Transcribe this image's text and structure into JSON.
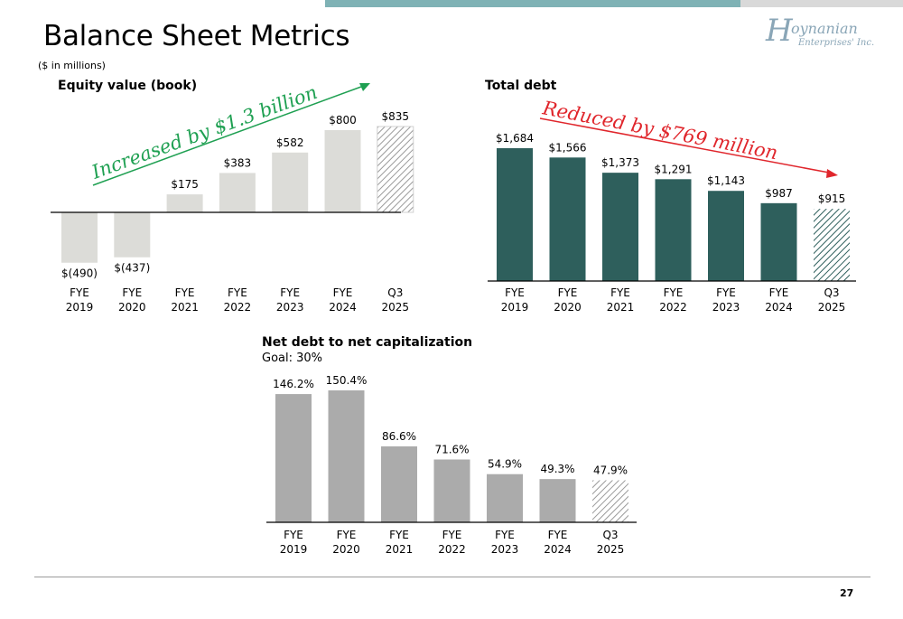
{
  "page": {
    "title": "Balance Sheet Metrics",
    "units_note": "($ in millions)",
    "page_number": "27",
    "band_color": "#7fb2b5"
  },
  "logo": {
    "initial": "H",
    "line1": "oynanian",
    "line2": "Enterprises' Inc."
  },
  "icons": {
    "trend_arrow": "arrow-right-icon",
    "hatch": "diagonal-hatch-pattern"
  },
  "chart_data": [
    {
      "id": "equity",
      "type": "bar",
      "title": "Equity value (book)",
      "categories": [
        [
          "FYE",
          "2019"
        ],
        [
          "FYE",
          "2020"
        ],
        [
          "FYE",
          "2021"
        ],
        [
          "FYE",
          "2022"
        ],
        [
          "FYE",
          "2023"
        ],
        [
          "FYE",
          "2024"
        ],
        [
          "Q3",
          "2025"
        ]
      ],
      "values": [
        -490,
        -437,
        175,
        383,
        582,
        800,
        835
      ],
      "value_labels": [
        "$(490)",
        "$(437)",
        "$175",
        "$383",
        "$582",
        "$800",
        "$835"
      ],
      "hatched_last": true,
      "color": "#dcdcd8",
      "annotation": {
        "text": "Increased by $1.3 billion",
        "color": "#1fa052"
      },
      "ylim": [
        -490,
        835
      ]
    },
    {
      "id": "debt",
      "type": "bar",
      "title": "Total debt",
      "categories": [
        [
          "FYE",
          "2019"
        ],
        [
          "FYE",
          "2020"
        ],
        [
          "FYE",
          "2021"
        ],
        [
          "FYE",
          "2022"
        ],
        [
          "FYE",
          "2023"
        ],
        [
          "FYE",
          "2024"
        ],
        [
          "Q3",
          "2025"
        ]
      ],
      "values": [
        1684,
        1566,
        1373,
        1291,
        1143,
        987,
        915
      ],
      "value_labels": [
        "$1,684",
        "$1,566",
        "$1,373",
        "$1,291",
        "$1,143",
        "$987",
        "$915"
      ],
      "hatched_last": true,
      "color": "#2e5f5c",
      "annotation": {
        "text": "Reduced by $769 million",
        "color": "#e0262c"
      },
      "ylim": [
        0,
        1684
      ]
    },
    {
      "id": "netdebt",
      "type": "bar",
      "title": "Net debt to net capitalization",
      "subtitle": "Goal: 30%",
      "categories": [
        [
          "FYE",
          "2019"
        ],
        [
          "FYE",
          "2020"
        ],
        [
          "FYE",
          "2021"
        ],
        [
          "FYE",
          "2022"
        ],
        [
          "FYE",
          "2023"
        ],
        [
          "FYE",
          "2024"
        ],
        [
          "Q3",
          "2025"
        ]
      ],
      "values": [
        146.2,
        150.4,
        86.6,
        71.6,
        54.9,
        49.3,
        47.9
      ],
      "value_labels": [
        "146.2%",
        "150.4%",
        "86.6%",
        "71.6%",
        "54.9%",
        "49.3%",
        "47.9%"
      ],
      "hatched_last": true,
      "color": "#ababab",
      "ylim": [
        0,
        150.4
      ]
    }
  ]
}
